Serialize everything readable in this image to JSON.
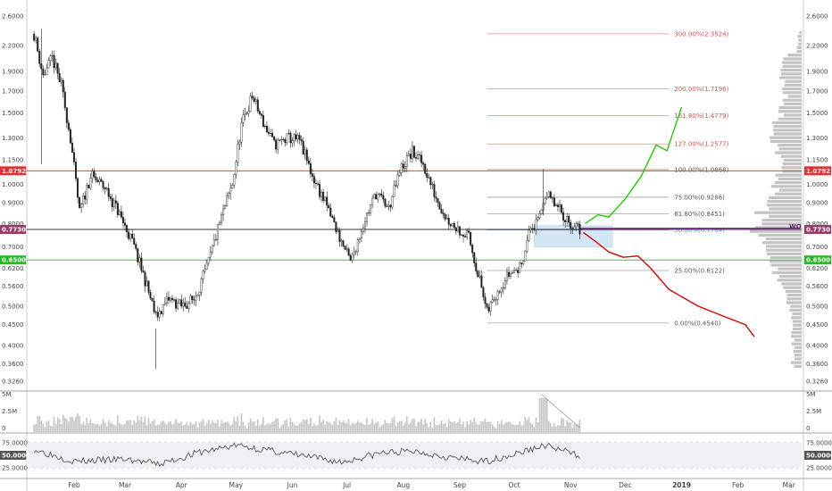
{
  "chart_data": {
    "type": "candlestick",
    "y_scale": "log",
    "ylim": [
      0.31,
      2.78
    ],
    "price_ticks": [
      "2.6000",
      "2.2000",
      "1.9000",
      "1.7000",
      "1.5000",
      "1.3000",
      "1.1500",
      "1.0000",
      "0.9000",
      "0.8000",
      "0.7000",
      "0.6200",
      "0.5600",
      "0.5000",
      "0.4500",
      "0.4000",
      "0.3600",
      "0.3260"
    ],
    "x_labels": [
      "Feb",
      "Mar",
      "Apr",
      "May",
      "Jun",
      "Jul",
      "Aug",
      "Sep",
      "Oct",
      "Nov",
      "Dec",
      "2019",
      "Feb",
      "Mar"
    ],
    "price_path": [
      {
        "date": "2018-01-10",
        "value": 2.35
      },
      {
        "date": "2018-01-15",
        "value": 1.85
      },
      {
        "date": "2018-01-20",
        "value": 2.05
      },
      {
        "date": "2018-01-25",
        "value": 1.75
      },
      {
        "date": "2018-01-30",
        "value": 1.3
      },
      {
        "date": "2018-02-04",
        "value": 0.85
      },
      {
        "date": "2018-02-10",
        "value": 1.05
      },
      {
        "date": "2018-02-18",
        "value": 0.98
      },
      {
        "date": "2018-02-25",
        "value": 0.86
      },
      {
        "date": "2018-03-05",
        "value": 0.72
      },
      {
        "date": "2018-03-12",
        "value": 0.58
      },
      {
        "date": "2018-03-18",
        "value": 0.47
      },
      {
        "date": "2018-03-25",
        "value": 0.52
      },
      {
        "date": "2018-04-01",
        "value": 0.5
      },
      {
        "date": "2018-04-08",
        "value": 0.52
      },
      {
        "date": "2018-04-15",
        "value": 0.62
      },
      {
        "date": "2018-04-22",
        "value": 0.8
      },
      {
        "date": "2018-04-29",
        "value": 1.0
      },
      {
        "date": "2018-05-04",
        "value": 1.4
      },
      {
        "date": "2018-05-10",
        "value": 1.65
      },
      {
        "date": "2018-05-15",
        "value": 1.45
      },
      {
        "date": "2018-05-22",
        "value": 1.25
      },
      {
        "date": "2018-05-30",
        "value": 1.3
      },
      {
        "date": "2018-06-05",
        "value": 1.28
      },
      {
        "date": "2018-06-12",
        "value": 1.05
      },
      {
        "date": "2018-06-20",
        "value": 0.88
      },
      {
        "date": "2018-06-28",
        "value": 0.72
      },
      {
        "date": "2018-07-03",
        "value": 0.64
      },
      {
        "date": "2018-07-10",
        "value": 0.8
      },
      {
        "date": "2018-07-17",
        "value": 0.95
      },
      {
        "date": "2018-07-24",
        "value": 0.87
      },
      {
        "date": "2018-07-31",
        "value": 1.1
      },
      {
        "date": "2018-08-06",
        "value": 1.2
      },
      {
        "date": "2018-08-12",
        "value": 1.12
      },
      {
        "date": "2018-08-18",
        "value": 0.95
      },
      {
        "date": "2018-08-25",
        "value": 0.82
      },
      {
        "date": "2018-09-01",
        "value": 0.77
      },
      {
        "date": "2018-09-06",
        "value": 0.74
      },
      {
        "date": "2018-09-12",
        "value": 0.58
      },
      {
        "date": "2018-09-16",
        "value": 0.48
      },
      {
        "date": "2018-09-22",
        "value": 0.55
      },
      {
        "date": "2018-09-28",
        "value": 0.6
      },
      {
        "date": "2018-10-04",
        "value": 0.62
      },
      {
        "date": "2018-10-10",
        "value": 0.78
      },
      {
        "date": "2018-10-14",
        "value": 0.8
      },
      {
        "date": "2018-10-18",
        "value": 0.95
      },
      {
        "date": "2018-10-24",
        "value": 0.88
      },
      {
        "date": "2018-10-30",
        "value": 0.82
      },
      {
        "date": "2018-11-03",
        "value": 0.78
      },
      {
        "date": "2018-11-06",
        "value": 0.773
      }
    ],
    "projections": [
      {
        "color": "#22cc00",
        "points": [
          {
            "date": "2018-11-09",
            "value": 0.8
          },
          {
            "date": "2018-11-16",
            "value": 0.84
          },
          {
            "date": "2018-11-22",
            "value": 0.83
          },
          {
            "date": "2018-12-01",
            "value": 0.92
          },
          {
            "date": "2018-12-10",
            "value": 1.05
          },
          {
            "date": "2018-12-18",
            "value": 1.25
          },
          {
            "date": "2018-12-24",
            "value": 1.21
          },
          {
            "date": "2019-01-01",
            "value": 1.55
          }
        ]
      },
      {
        "color": "#dd0000",
        "points": [
          {
            "date": "2018-11-08",
            "value": 0.76
          },
          {
            "date": "2018-11-15",
            "value": 0.72
          },
          {
            "date": "2018-11-22",
            "value": 0.68
          },
          {
            "date": "2018-11-30",
            "value": 0.66
          },
          {
            "date": "2018-12-08",
            "value": 0.665
          },
          {
            "date": "2018-12-15",
            "value": 0.62
          },
          {
            "date": "2018-12-25",
            "value": 0.55
          },
          {
            "date": "2019-01-10",
            "value": 0.5
          },
          {
            "date": "2019-01-25",
            "value": 0.47
          },
          {
            "date": "2019-02-05",
            "value": 0.45
          },
          {
            "date": "2019-02-10",
            "value": 0.42
          }
        ]
      }
    ],
    "fib_levels": [
      {
        "label": "300.00%(2.3524)",
        "value": 2.3524,
        "color": "#e05050"
      },
      {
        "label": "200.00%(1.7196)",
        "value": 1.7196,
        "color": "#e05050"
      },
      {
        "label": "161.80%(1.4779)",
        "value": 1.4779,
        "color": "#e05050"
      },
      {
        "label": "127.00%(1.2577)",
        "value": 1.2577,
        "color": "#e05050"
      },
      {
        "label": "100.00%(1.0868)",
        "value": 1.0868,
        "color": "#555555"
      },
      {
        "label": "75.00%(0.9286)",
        "value": 0.9286,
        "color": "#555555"
      },
      {
        "label": "61.80%(0.8451)",
        "value": 0.8451,
        "color": "#555555"
      },
      {
        "label": "50.00%(0.7704)",
        "value": 0.7704,
        "color": "#7799cc"
      },
      {
        "label": "25.00%(0.6122)",
        "value": 0.6122,
        "color": "#555555"
      },
      {
        "label": "0.00%(0.4540)",
        "value": 0.454,
        "color": "#555555"
      }
    ],
    "horizontal_lines": [
      {
        "label": "1.0792",
        "value": 1.0792,
        "color": "#e04040",
        "tag_color": "#e03030"
      },
      {
        "label": "0.7730",
        "value": 0.773,
        "color": "#333333",
        "tag_color": "#9b3a6a"
      },
      {
        "label": "0.6500",
        "value": 0.65,
        "color": "#33cc33",
        "tag_color": "#22bb22"
      }
    ],
    "marker_label": "WO",
    "volume_ticks": [
      "5M",
      "2.5M",
      "0"
    ],
    "rsi_ticks": [
      "75.0000",
      "50.0000",
      "25.0000"
    ],
    "rsi_value_tag": "50.0000",
    "rsi_path": [
      {
        "date": "2018-01-10",
        "value": 62
      },
      {
        "date": "2018-02-01",
        "value": 38
      },
      {
        "date": "2018-03-01",
        "value": 42
      },
      {
        "date": "2018-03-20",
        "value": 32
      },
      {
        "date": "2018-04-10",
        "value": 55
      },
      {
        "date": "2018-05-01",
        "value": 70
      },
      {
        "date": "2018-05-15",
        "value": 62
      },
      {
        "date": "2018-06-05",
        "value": 50
      },
      {
        "date": "2018-06-28",
        "value": 36
      },
      {
        "date": "2018-07-20",
        "value": 55
      },
      {
        "date": "2018-08-08",
        "value": 58
      },
      {
        "date": "2018-08-30",
        "value": 44
      },
      {
        "date": "2018-09-14",
        "value": 37
      },
      {
        "date": "2018-10-01",
        "value": 52
      },
      {
        "date": "2018-10-18",
        "value": 70
      },
      {
        "date": "2018-11-06",
        "value": 49
      }
    ]
  }
}
